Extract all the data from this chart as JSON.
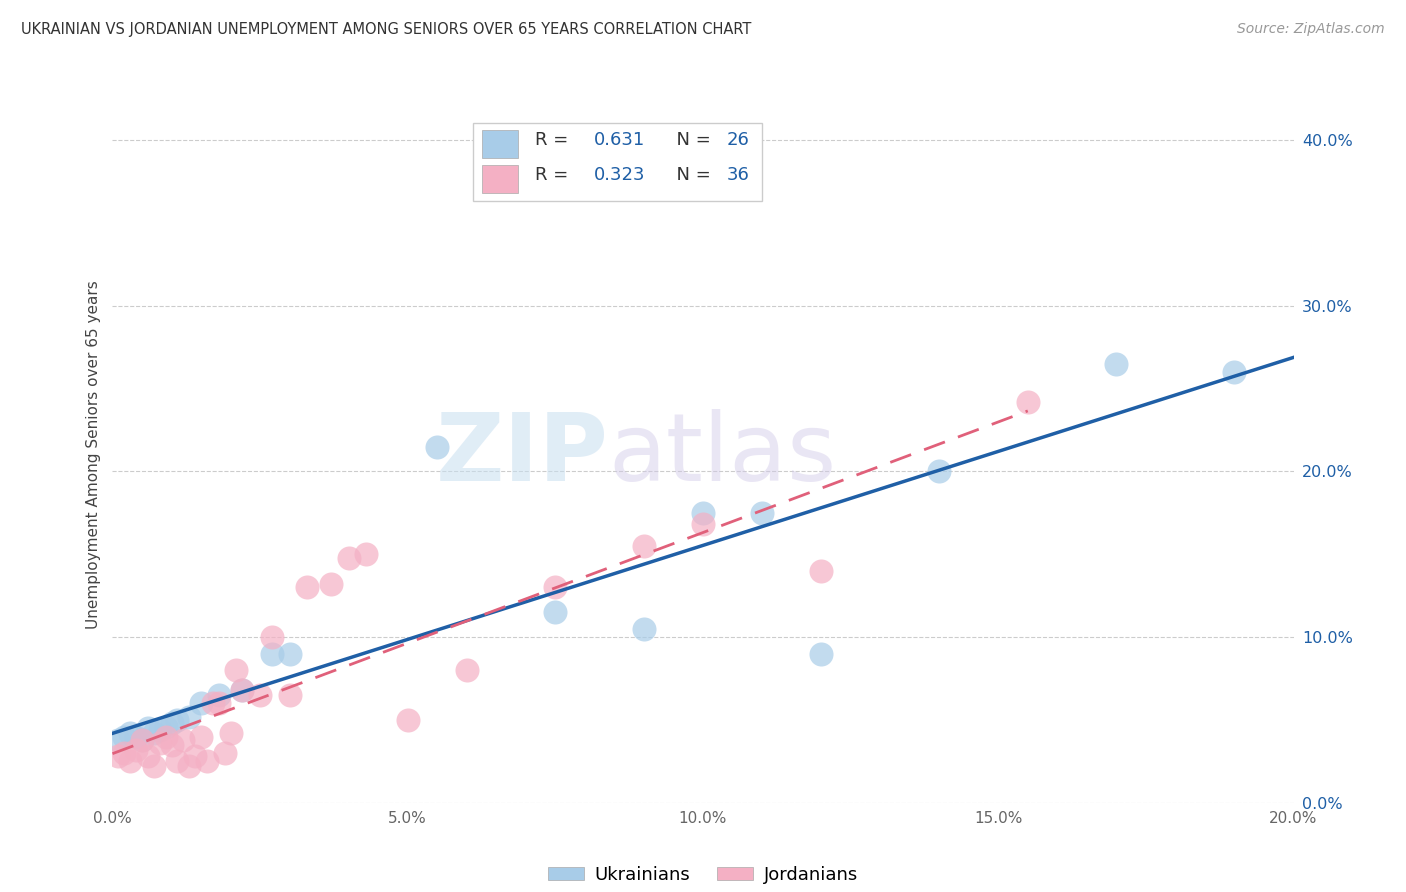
{
  "title": "UKRAINIAN VS JORDANIAN UNEMPLOYMENT AMONG SENIORS OVER 65 YEARS CORRELATION CHART",
  "source": "Source: ZipAtlas.com",
  "ylabel": "Unemployment Among Seniors over 65 years",
  "xlim": [
    0.0,
    0.2
  ],
  "ylim": [
    0.0,
    0.42
  ],
  "xticks": [
    0.0,
    0.05,
    0.1,
    0.15,
    0.2
  ],
  "yticks": [
    0.0,
    0.1,
    0.2,
    0.3,
    0.4
  ],
  "ukraine_R": 0.631,
  "ukraine_N": 26,
  "jordan_R": 0.323,
  "jordan_N": 36,
  "blue_scatter_color": "#a8cce8",
  "pink_scatter_color": "#f4b0c4",
  "blue_line_color": "#1f5fa6",
  "pink_line_color": "#e0607a",
  "watermark_text": "ZIP",
  "watermark_text2": "atlas",
  "background_color": "#ffffff",
  "grid_color": "#cccccc",
  "ukraine_x": [
    0.001,
    0.002,
    0.003,
    0.004,
    0.005,
    0.006,
    0.007,
    0.008,
    0.009,
    0.01,
    0.011,
    0.013,
    0.015,
    0.018,
    0.022,
    0.027,
    0.03,
    0.055,
    0.075,
    0.09,
    0.1,
    0.11,
    0.12,
    0.14,
    0.17,
    0.19
  ],
  "ukraine_y": [
    0.038,
    0.04,
    0.042,
    0.04,
    0.038,
    0.045,
    0.042,
    0.044,
    0.046,
    0.048,
    0.05,
    0.052,
    0.06,
    0.065,
    0.068,
    0.09,
    0.09,
    0.215,
    0.115,
    0.105,
    0.175,
    0.175,
    0.09,
    0.2,
    0.265,
    0.26
  ],
  "jordan_x": [
    0.001,
    0.002,
    0.003,
    0.004,
    0.005,
    0.006,
    0.007,
    0.008,
    0.009,
    0.01,
    0.011,
    0.012,
    0.013,
    0.014,
    0.015,
    0.016,
    0.017,
    0.018,
    0.019,
    0.02,
    0.021,
    0.022,
    0.025,
    0.027,
    0.03,
    0.033,
    0.037,
    0.04,
    0.043,
    0.05,
    0.06,
    0.075,
    0.09,
    0.1,
    0.12,
    0.155
  ],
  "jordan_y": [
    0.028,
    0.03,
    0.025,
    0.032,
    0.038,
    0.028,
    0.022,
    0.036,
    0.04,
    0.035,
    0.025,
    0.038,
    0.022,
    0.028,
    0.04,
    0.025,
    0.06,
    0.06,
    0.03,
    0.042,
    0.08,
    0.068,
    0.065,
    0.1,
    0.065,
    0.13,
    0.132,
    0.148,
    0.15,
    0.05,
    0.08,
    0.13,
    0.155,
    0.168,
    0.14,
    0.242
  ]
}
